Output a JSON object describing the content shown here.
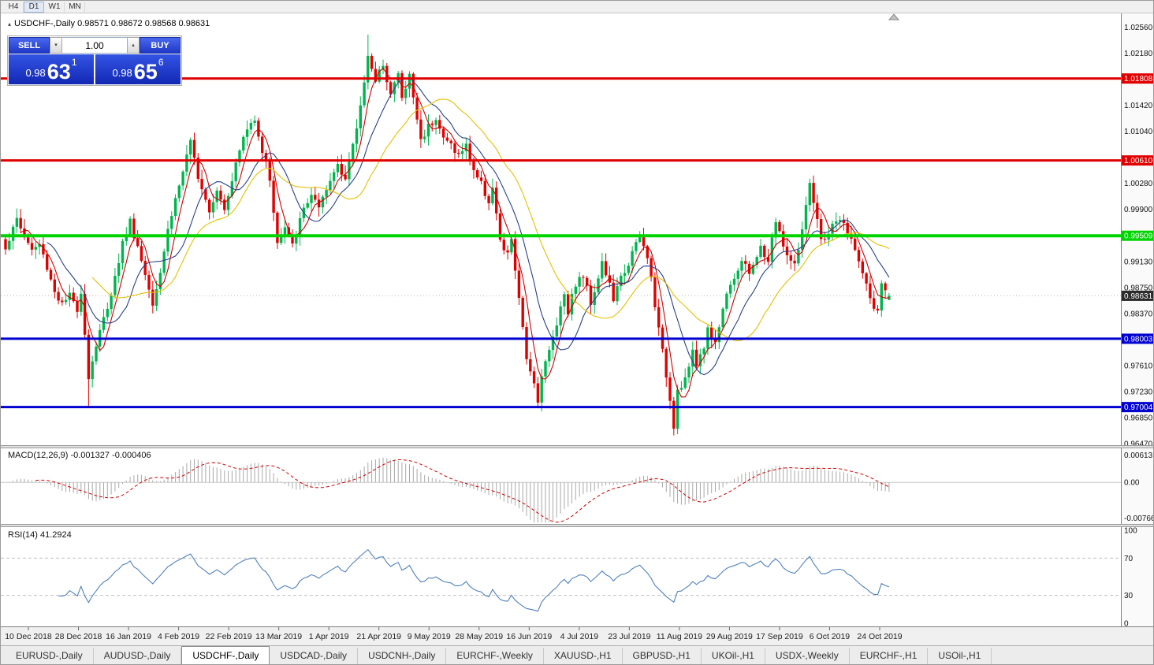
{
  "icons": {
    "collapse_triangle": "▴",
    "chevron_down": "▾",
    "chevron_up": "▴"
  },
  "toolbar": {
    "timeframes": [
      {
        "label": "H4",
        "active": false
      },
      {
        "label": "D1",
        "active": true
      },
      {
        "label": "W1",
        "active": false
      },
      {
        "label": "MN",
        "active": false
      }
    ]
  },
  "chart_header": {
    "ohlc_line": "USDCHF-,Daily 0.98571 0.98672 0.98568 0.98631"
  },
  "trade_panel": {
    "sell_label": "SELL",
    "buy_label": "BUY",
    "volume": "1.00",
    "sell_price_prefix": "0.98",
    "sell_price_big": "63",
    "sell_price_sup": "1",
    "buy_price_prefix": "0.98",
    "buy_price_big": "65",
    "buy_price_sup": "6"
  },
  "chart_data": {
    "type": "candlestick",
    "symbol": "USDCHF",
    "timeframe": "Daily",
    "last_ohlc": {
      "o": 0.98571,
      "h": 0.98672,
      "l": 0.98568,
      "c": 0.98631
    },
    "ylim": [
      0.96447,
      1.0276
    ],
    "price_ticks": [
      "1.02560",
      "1.02180",
      "1.01420",
      "1.01040",
      "1.00280",
      "0.99900",
      "0.99130",
      "0.98750",
      "0.98370",
      "0.97610",
      "0.97230",
      "0.96850",
      "0.96470"
    ],
    "hlines": [
      {
        "price": 1.01808,
        "label": "1.01808",
        "color": "#e00000",
        "width": 3
      },
      {
        "price": 1.0061,
        "label": "1.00610",
        "color": "#e00000",
        "width": 3
      },
      {
        "price": 0.99509,
        "label": "0.99509",
        "color": "#00d400",
        "width": 4
      },
      {
        "price": 0.98003,
        "label": "0.98003",
        "color": "#0000d0",
        "width": 3
      },
      {
        "price": 0.97004,
        "label": "0.97004",
        "color": "#0000d0",
        "width": 3
      }
    ],
    "current_price": {
      "price": 0.98631,
      "label": "0.98631",
      "bg": "#2b2b2b"
    },
    "x_labels": [
      "10 Dec 2018",
      "28 Dec 2018",
      "16 Jan 2019",
      "4 Feb 2019",
      "22 Feb 2019",
      "13 Mar 2019",
      "1 Apr 2019",
      "21 Apr 2019",
      "9 May 2019",
      "28 May 2019",
      "16 Jun 2019",
      "4 Jul 2019",
      "23 Jul 2019",
      "11 Aug 2019",
      "29 Aug 2019",
      "17 Sep 2019",
      "6 Oct 2019",
      "24 Oct 2019"
    ],
    "candles": {
      "count": 235,
      "seed": 1337,
      "noise": 0.0013,
      "close_path": [
        [
          0,
          0.9935
        ],
        [
          2,
          0.996
        ],
        [
          3,
          0.9975
        ],
        [
          5,
          0.995
        ],
        [
          7,
          0.993
        ],
        [
          9,
          0.9938
        ],
        [
          11,
          0.9905
        ],
        [
          13,
          0.987
        ],
        [
          15,
          0.985
        ],
        [
          17,
          0.9862
        ],
        [
          19,
          0.9845
        ],
        [
          20,
          0.987
        ],
        [
          21,
          0.981
        ],
        [
          22,
          0.9742
        ],
        [
          23,
          0.977
        ],
        [
          25,
          0.981
        ],
        [
          27,
          0.9848
        ],
        [
          29,
          0.989
        ],
        [
          31,
          0.994
        ],
        [
          33,
          0.9972
        ],
        [
          35,
          0.9935
        ],
        [
          37,
          0.9895
        ],
        [
          39,
          0.9855
        ],
        [
          41,
          0.99
        ],
        [
          43,
          0.996
        ],
        [
          45,
          1.0005
        ],
        [
          47,
          1.0045
        ],
        [
          49,
          1.0085
        ],
        [
          51,
          1.004
        ],
        [
          54,
          0.999
        ],
        [
          56,
          1.002
        ],
        [
          58,
          0.9992
        ],
        [
          60,
          1.0035
        ],
        [
          63,
          1.0095
        ],
        [
          66,
          1.0125
        ],
        [
          68,
          1.0075
        ],
        [
          70,
          1.0035
        ],
        [
          72,
          0.994
        ],
        [
          74,
          0.9962
        ],
        [
          76,
          0.9935
        ],
        [
          79,
          0.999
        ],
        [
          81,
          1.0012
        ],
        [
          83,
          0.9988
        ],
        [
          86,
          1.003
        ],
        [
          88,
          1.0058
        ],
        [
          90,
          1.0035
        ],
        [
          92,
          1.008
        ],
        [
          94,
          1.014
        ],
        [
          96,
          1.0218
        ],
        [
          98,
          1.0172
        ],
        [
          100,
          1.0205
        ],
        [
          102,
          1.0158
        ],
        [
          104,
          1.0188
        ],
        [
          105,
          1.015
        ],
        [
          107,
          1.0185
        ],
        [
          109,
          1.0122
        ],
        [
          110,
          1.009
        ],
        [
          112,
          1.0112
        ],
        [
          114,
          1.0125
        ],
        [
          116,
          1.0092
        ],
        [
          118,
          1.0085
        ],
        [
          120,
          1.0068
        ],
        [
          122,
          1.0082
        ],
        [
          124,
          1.0048
        ],
        [
          126,
          1.0026
        ],
        [
          128,
          1.0002
        ],
        [
          129,
          1.0022
        ],
        [
          131,
          0.994
        ],
        [
          133,
          0.9922
        ],
        [
          134,
          0.9948
        ],
        [
          136,
          0.9855
        ],
        [
          138,
          0.9772
        ],
        [
          139,
          0.9758
        ],
        [
          141,
          0.9712
        ],
        [
          142,
          0.9748
        ],
        [
          144,
          0.9782
        ],
        [
          146,
          0.9825
        ],
        [
          148,
          0.9868
        ],
        [
          149,
          0.9842
        ],
        [
          151,
          0.9882
        ],
        [
          153,
          0.9892
        ],
        [
          155,
          0.9855
        ],
        [
          156,
          0.9872
        ],
        [
          158,
          0.9912
        ],
        [
          160,
          0.9878
        ],
        [
          161,
          0.9858
        ],
        [
          163,
          0.9888
        ],
        [
          165,
          0.9912
        ],
        [
          167,
          0.9938
        ],
        [
          168,
          0.995
        ],
        [
          170,
          0.9918
        ],
        [
          171,
          0.9888
        ],
        [
          172,
          0.9852
        ],
        [
          173,
          0.9812
        ],
        [
          175,
          0.9748
        ],
        [
          176,
          0.9712
        ],
        [
          177,
          0.9675
        ],
        [
          178,
          0.9726
        ],
        [
          180,
          0.9742
        ],
        [
          182,
          0.9778
        ],
        [
          183,
          0.9762
        ],
        [
          185,
          0.9792
        ],
        [
          186,
          0.9812
        ],
        [
          188,
          0.9796
        ],
        [
          190,
          0.9842
        ],
        [
          191,
          0.9872
        ],
        [
          193,
          0.9892
        ],
        [
          195,
          0.9912
        ],
        [
          197,
          0.9896
        ],
        [
          198,
          0.9912
        ],
        [
          200,
          0.9932
        ],
        [
          202,
          0.9908
        ],
        [
          203,
          0.9952
        ],
        [
          204,
          0.9972
        ],
        [
          206,
          0.9938
        ],
        [
          207,
          0.9922
        ],
        [
          209,
          0.9906
        ],
        [
          210,
          0.9932
        ],
        [
          212,
          0.9992
        ],
        [
          213,
          1.0022
        ],
        [
          215,
          0.9972
        ],
        [
          216,
          0.9942
        ],
        [
          218,
          0.9956
        ],
        [
          220,
          0.9972
        ],
        [
          221,
          0.9976
        ],
        [
          223,
          0.9952
        ],
        [
          225,
          0.9936
        ],
        [
          226,
          0.9912
        ],
        [
          228,
          0.9876
        ],
        [
          230,
          0.9846
        ],
        [
          231,
          0.9836
        ],
        [
          232,
          0.9885
        ],
        [
          233,
          0.9868
        ],
        [
          234,
          0.98631
        ]
      ],
      "wick_overrides": [
        [
          22,
          null,
          0.9702
        ],
        [
          96,
          1.0245,
          null
        ],
        [
          177,
          null,
          0.9659
        ]
      ]
    },
    "moving_averages": [
      {
        "period": 5,
        "color": "#cc0000",
        "name": "ma-fast-red"
      },
      {
        "period": 12,
        "color": "#27408b",
        "name": "ma-mid-blue"
      },
      {
        "period": 24,
        "color": "#e6c000",
        "name": "ma-slow-yellow"
      }
    ],
    "colors": {
      "up": "#00b44e",
      "down": "#e00000",
      "background": "#ffffff"
    },
    "macd": {
      "label": "MACD(12,26,9) -0.001327 -0.000406",
      "fast": 12,
      "slow": 26,
      "signal": 9,
      "values_text": [
        "-0.001327",
        "-0.000406"
      ],
      "ylim": [
        -0.0076612,
        0.00613
      ],
      "axis_labels": [
        "0.00613",
        "0.00",
        "-0.0076612"
      ],
      "hist_color": "#a8a8a8",
      "signal_color": "#d00000"
    },
    "rsi": {
      "label": "RSI(14) 41.2924",
      "period": 14,
      "value": 41.2924,
      "axis_labels": [
        "100",
        "70",
        "30",
        "0"
      ],
      "levels": [
        70,
        30
      ],
      "color": "#4f81bd"
    }
  },
  "tabs": {
    "items": [
      {
        "label": "EURUSD-,Daily",
        "active": false
      },
      {
        "label": "AUDUSD-,Daily",
        "active": false
      },
      {
        "label": "USDCHF-,Daily",
        "active": true
      },
      {
        "label": "USDCAD-,Daily",
        "active": false
      },
      {
        "label": "USDCNH-,Daily",
        "active": false
      },
      {
        "label": "EURCHF-,Weekly",
        "active": false
      },
      {
        "label": "XAUUSD-,H1",
        "active": false
      },
      {
        "label": "GBPUSD-,H1",
        "active": false
      },
      {
        "label": "UKOil-,H1",
        "active": false
      },
      {
        "label": "USDX-,Weekly",
        "active": false
      },
      {
        "label": "EURCHF-,H1",
        "active": false
      },
      {
        "label": "USOil-,H1",
        "active": false
      }
    ]
  }
}
